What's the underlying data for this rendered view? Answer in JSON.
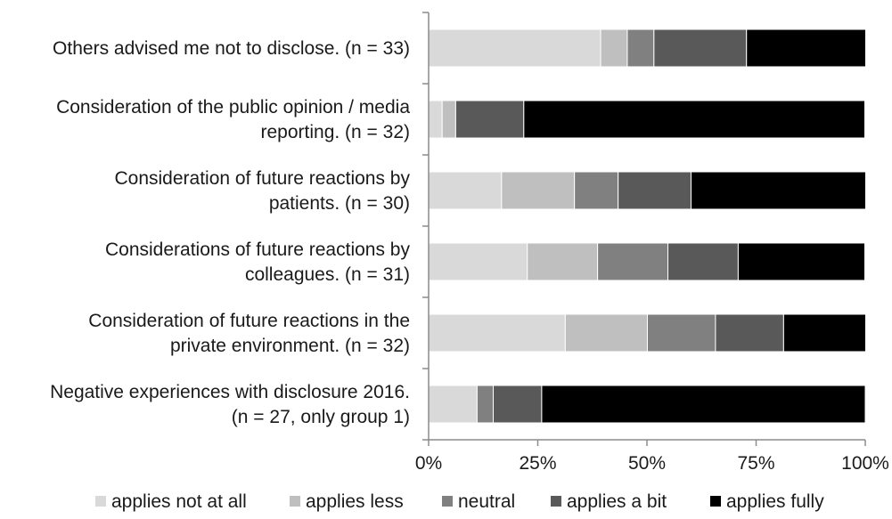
{
  "chart_data": {
    "type": "bar",
    "stacked": true,
    "orientation": "horizontal",
    "percent": true,
    "categories": [
      [
        "Others advised me not to disclose. (n = 33)"
      ],
      [
        "Consideration of the public opinion / media",
        "reporting. (n = 32)"
      ],
      [
        "Consideration of future reactions by",
        "patients. (n = 30)"
      ],
      [
        "Considerations of future reactions by",
        "colleagues. (n = 31)"
      ],
      [
        "Consideration of future reactions in the",
        "private environment. (n = 32)"
      ],
      [
        "Negative experiences with disclosure 2016.",
        "(n = 27, only group 1)"
      ]
    ],
    "series": [
      {
        "name": "applies not at all",
        "color": "#d9d9d9",
        "values": [
          39.4,
          3.1,
          16.7,
          22.6,
          31.3,
          11.1
        ]
      },
      {
        "name": "applies less",
        "color": "#bfbfbf",
        "values": [
          6.1,
          3.1,
          16.7,
          16.1,
          18.8,
          0
        ]
      },
      {
        "name": "neutral",
        "color": "#808080",
        "values": [
          6.1,
          0,
          10.0,
          16.1,
          15.6,
          3.7
        ]
      },
      {
        "name": "applies a bit",
        "color": "#595959",
        "values": [
          21.2,
          15.6,
          16.7,
          16.1,
          15.6,
          11.1
        ]
      },
      {
        "name": "applies fully",
        "color": "#000000",
        "values": [
          27.3,
          78.1,
          40.0,
          29.0,
          18.8,
          74.1
        ]
      }
    ],
    "xlim": [
      0,
      100
    ],
    "xticks": [
      "0%",
      "25%",
      "50%",
      "75%",
      "100%"
    ],
    "grid": false,
    "legend_position": "bottom"
  }
}
